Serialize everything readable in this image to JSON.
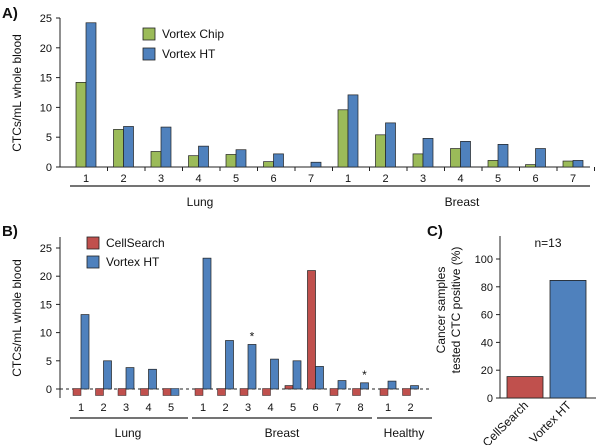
{
  "colors": {
    "green": "#9bbb59",
    "blue": "#4f81bd",
    "red": "#c0504d",
    "edge": "#222222"
  },
  "chart_data": [
    {
      "panel": "A)",
      "type": "bar",
      "ylabel": "CTCs/mL whole blood",
      "ylim": [
        0,
        25
      ],
      "yticks": [
        "0",
        "5",
        "10",
        "15",
        "20",
        "25"
      ],
      "legend": [
        "Vortex Chip",
        "Vortex HT"
      ],
      "groups": [
        {
          "name": "Lung",
          "categories": [
            "1",
            "2",
            "3",
            "4",
            "5",
            "6",
            "7"
          ],
          "series": [
            {
              "name": "Vortex Chip",
              "values": [
                14.2,
                6.3,
                2.6,
                1.9,
                2.1,
                0.9,
                0
              ]
            },
            {
              "name": "Vortex HT",
              "values": [
                24.2,
                6.8,
                6.7,
                3.5,
                2.9,
                2.2,
                0.8
              ]
            }
          ]
        },
        {
          "name": "Breast",
          "categories": [
            "1",
            "2",
            "3",
            "4",
            "5",
            "6",
            "7"
          ],
          "series": [
            {
              "name": "Vortex Chip",
              "values": [
                9.6,
                5.4,
                2.2,
                3.1,
                1.1,
                0.4,
                1.0
              ]
            },
            {
              "name": "Vortex HT",
              "values": [
                12.1,
                7.4,
                4.8,
                4.3,
                3.8,
                3.1,
                1.1
              ]
            }
          ]
        }
      ]
    },
    {
      "panel": "B)",
      "type": "bar",
      "ylabel": "CTCs/mL whole blood",
      "ylim": [
        0,
        25
      ],
      "yticks": [
        "0",
        "5",
        "10",
        "15",
        "20",
        "25"
      ],
      "legend": [
        "CellSearch",
        "Vortex HT"
      ],
      "marker": "*",
      "groups": [
        {
          "name": "Lung",
          "categories": [
            "1",
            "2",
            "3",
            "4",
            "5"
          ],
          "series": [
            {
              "name": "CellSearch",
              "values": [
                0,
                0,
                0,
                0,
                0
              ]
            },
            {
              "name": "Vortex HT",
              "values": [
                13.2,
                5.0,
                3.8,
                3.5,
                0
              ]
            }
          ],
          "starred": []
        },
        {
          "name": "Breast",
          "categories": [
            "1",
            "2",
            "3",
            "4",
            "5",
            "6",
            "7",
            "8"
          ],
          "series": [
            {
              "name": "CellSearch",
              "values": [
                0,
                0,
                0,
                0,
                0.6,
                21.0,
                0,
                0
              ]
            },
            {
              "name": "Vortex HT",
              "values": [
                23.2,
                8.6,
                7.9,
                5.3,
                5.0,
                4.0,
                1.5,
                1.1
              ]
            }
          ],
          "starred": [
            2,
            7
          ]
        },
        {
          "name": "Healthy",
          "categories": [
            "1",
            "2"
          ],
          "series": [
            {
              "name": "CellSearch",
              "values": [
                0,
                0
              ]
            },
            {
              "name": "Vortex HT",
              "values": [
                1.4,
                0.6
              ]
            }
          ],
          "starred": []
        }
      ]
    },
    {
      "panel": "C)",
      "type": "bar",
      "ylabel": "Cancer samples tested CTC positive (%)",
      "ylabel_lines": [
        "Cancer samples",
        "tested CTC positive (%)"
      ],
      "ylim": [
        0,
        100
      ],
      "yticks": [
        "0",
        "20",
        "40",
        "60",
        "80",
        "100"
      ],
      "annotation": "n=13",
      "categories": [
        "CellSearch",
        "Vortex HT"
      ],
      "values": [
        15.4,
        84.6
      ]
    }
  ]
}
